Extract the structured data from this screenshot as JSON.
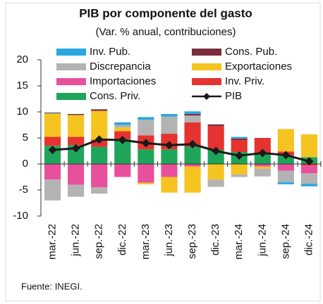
{
  "chart_data": {
    "type": "stacked_bar_line",
    "title": "PIB por componente del gasto",
    "subtitle": "(Var. % anual, contribuciones)",
    "source": "Fuente: INEGI.",
    "categories": [
      "mar.-22",
      "jun.-22",
      "sep.-22",
      "dic.-22",
      "mar.-23",
      "jun.-23",
      "sep.-23",
      "dic.-23",
      "mar.-24",
      "jun.-24",
      "sep.-24",
      "dic.-24"
    ],
    "ylim": [
      -10,
      20
    ],
    "yticks": [
      -10,
      -5,
      0,
      5,
      10,
      15,
      20
    ],
    "series": [
      {
        "name": "Inv. Pub.",
        "color": "#2aa7e0",
        "values": [
          0.1,
          0,
          0,
          0.5,
          0.5,
          0.5,
          0.5,
          0,
          0.3,
          0,
          -0.4,
          -0.5
        ]
      },
      {
        "name": "Cons. Pub.",
        "color": "#7a2d3c",
        "values": [
          0.1,
          0.2,
          0.3,
          0,
          0,
          0,
          0.3,
          0.3,
          0.3,
          0,
          0,
          0
        ]
      },
      {
        "name": "Discrepancia",
        "color": "#b3b3b3",
        "values": [
          -4,
          -2.3,
          -1.2,
          0.5,
          3.0,
          3.3,
          1.3,
          -1.4,
          -0.5,
          -1.5,
          -2.2,
          -2
        ]
      },
      {
        "name": "Exportaciones",
        "color": "#f5c421",
        "values": [
          4.5,
          4.2,
          5.5,
          0.7,
          -0.3,
          -3,
          -5,
          -3,
          -2,
          -0.4,
          4.3,
          4.4
        ]
      },
      {
        "name": "Importaciones",
        "color": "#e9509c",
        "values": [
          -3,
          -4,
          -4.5,
          -2.5,
          -3.6,
          -2.5,
          -0.5,
          0,
          0,
          -0.5,
          -1.3,
          -1.5
        ]
      },
      {
        "name": "Inv. Priv.",
        "color": "#e5332f",
        "values": [
          1.7,
          1.6,
          1.4,
          1.5,
          2.7,
          3.0,
          4.7,
          4.6,
          2.3,
          2.9,
          0.8,
          -0.3
        ]
      },
      {
        "name": "Cons. Priv.",
        "color": "#1ea55a",
        "values": [
          3.5,
          3.6,
          3.3,
          4.8,
          2.8,
          2.8,
          3.3,
          2.7,
          2.3,
          2.1,
          1.6,
          1.3
        ]
      },
      {
        "name": "PIB",
        "color": "#1a1a1a",
        "line": true,
        "values": [
          2.7,
          3.0,
          4.7,
          4.6,
          4.0,
          3.6,
          3.8,
          2.5,
          1.6,
          2.1,
          1.7,
          0.5
        ]
      }
    ]
  }
}
